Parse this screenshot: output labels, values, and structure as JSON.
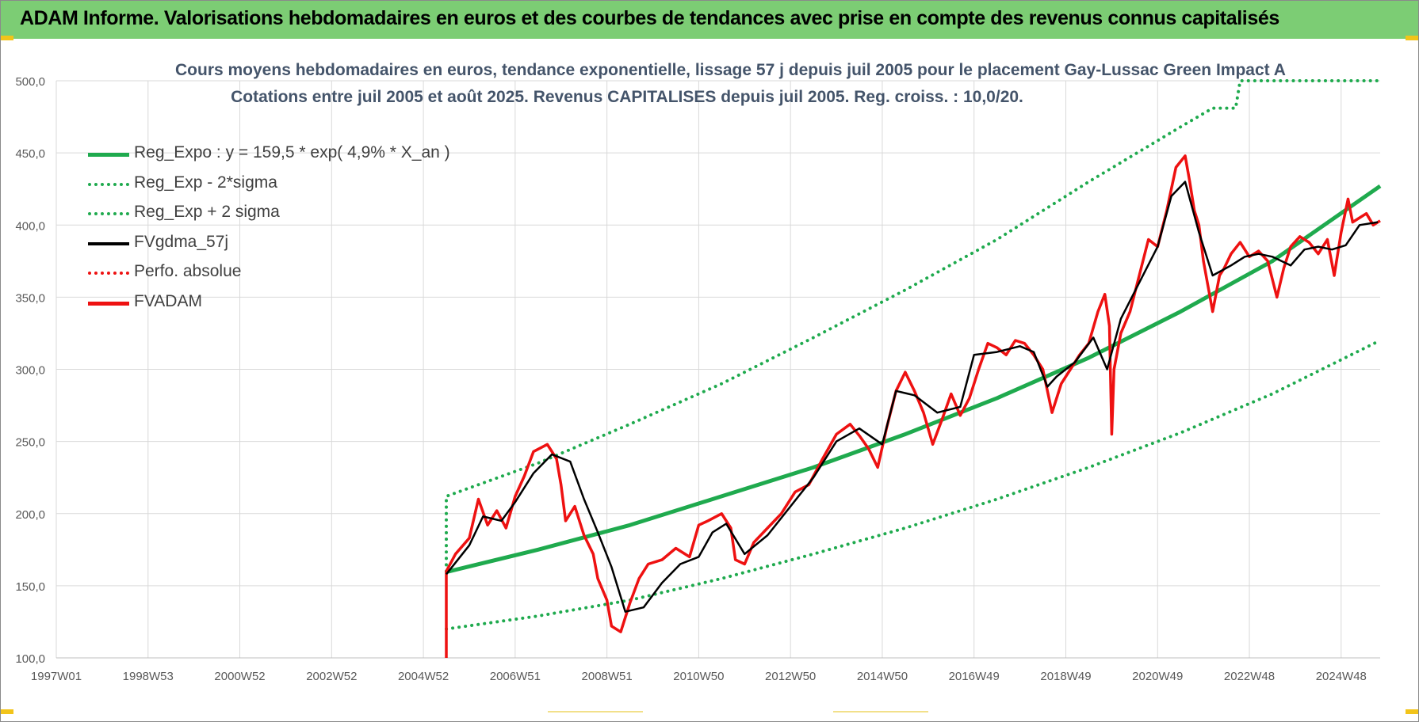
{
  "header": {
    "title": "ADAM Informe. Valorisations hebdomadaires en euros et des courbes de tendances avec prise en compte des revenus connus capitalisés"
  },
  "colors": {
    "banner": "#7ccd74",
    "regression": "#1faa4e",
    "band": "#1faa4e",
    "smoothed": "#000000",
    "price": "#ee1111",
    "grid": "#d9d9d9",
    "axis_text": "#595959",
    "title_text": "#44546a"
  },
  "chart_data": {
    "type": "line",
    "title": "Cours moyens hebdomadaires en euros, tendance exponentielle, lissage 57 j depuis juil 2005 pour le placement Gay-Lussac Green Impact A",
    "subtitle": "Cotations entre juil 2005 et août 2025. Revenus CAPITALISES depuis juil 2005. Reg. croiss. : 10,0/20.",
    "xlabel": "",
    "ylabel": "",
    "xlim": [
      1997.0,
      2025.85
    ],
    "ylim": [
      100,
      500
    ],
    "grid": true,
    "legend_position": "left",
    "x_tick_labels": [
      "1997W01",
      "1998W53",
      "2000W52",
      "2002W52",
      "2004W52",
      "2006W51",
      "2008W51",
      "2010W50",
      "2012W50",
      "2014W50",
      "2016W49",
      "2018W49",
      "2020W49",
      "2022W48",
      "2024W48"
    ],
    "x_tick_values": [
      1997.0,
      1999.0,
      2001.0,
      2003.0,
      2005.0,
      2007.0,
      2009.0,
      2011.0,
      2013.0,
      2015.0,
      2017.0,
      2019.0,
      2021.0,
      2023.0,
      2025.0
    ],
    "y_tick_labels": [
      "100,0",
      "150,0",
      "200,0",
      "250,0",
      "300,0",
      "350,0",
      "400,0",
      "450,0",
      "500,0"
    ],
    "y_tick_values": [
      100,
      150,
      200,
      250,
      300,
      350,
      400,
      450,
      500
    ],
    "series": [
      {
        "name": "Reg_Expo : y = 159,5 * exp( 4,9% *  X_an )",
        "style": "solid-thick",
        "color": "#1faa4e",
        "x": [
          2005.5,
          2007.5,
          2009.5,
          2011.5,
          2013.5,
          2015.5,
          2017.5,
          2019.5,
          2021.5,
          2023.5,
          2025.85
        ],
        "y": [
          159.5,
          175,
          192,
          212,
          232,
          255,
          280,
          308,
          340,
          375,
          427
        ]
      },
      {
        "name": "Reg_Exp - 2*sigma",
        "style": "dotted",
        "color": "#1faa4e",
        "x": [
          2005.5,
          2007.5,
          2009.5,
          2011.5,
          2013.5,
          2015.5,
          2017.5,
          2019.5,
          2021.5,
          2023.5,
          2025.85
        ],
        "y": [
          120,
          129,
          140,
          155,
          172,
          190,
          210,
          232,
          256,
          283,
          320
        ]
      },
      {
        "name": "Reg_Exp + 2 sigma",
        "style": "dotted",
        "color": "#1faa4e",
        "x": [
          2005.5,
          2005.5,
          2007.5,
          2009.5,
          2011.5,
          2013.5,
          2015.5,
          2017.5,
          2019.5,
          2021.5,
          2022.2,
          2022.7,
          2022.8,
          2025.85
        ],
        "y": [
          160,
          212,
          235,
          262,
          290,
          322,
          355,
          390,
          430,
          468,
          481,
          481,
          500,
          500
        ]
      },
      {
        "name": "FVgdma_57j",
        "style": "solid",
        "color": "#000000",
        "x": [
          2005.5,
          2006.0,
          2006.3,
          2006.7,
          2007.0,
          2007.4,
          2007.8,
          2008.2,
          2008.5,
          2008.8,
          2009.1,
          2009.4,
          2009.8,
          2010.2,
          2010.6,
          2011.0,
          2011.3,
          2011.6,
          2012.0,
          2012.5,
          2013.0,
          2013.5,
          2014.0,
          2014.5,
          2015.0,
          2015.3,
          2015.7,
          2016.2,
          2016.7,
          2017.0,
          2017.5,
          2018.0,
          2018.3,
          2018.6,
          2018.8,
          2019.2,
          2019.6,
          2019.9,
          2020.2,
          2020.6,
          2021.0,
          2021.3,
          2021.6,
          2021.9,
          2022.2,
          2022.6,
          2022.9,
          2023.2,
          2023.5,
          2023.9,
          2024.2,
          2024.5,
          2024.8,
          2025.1,
          2025.4,
          2025.8
        ],
        "y": [
          158,
          178,
          198,
          195,
          208,
          228,
          241,
          236,
          210,
          187,
          163,
          132,
          135,
          152,
          165,
          170,
          187,
          193,
          172,
          185,
          205,
          225,
          250,
          259,
          248,
          285,
          282,
          270,
          274,
          310,
          312,
          316,
          312,
          288,
          295,
          305,
          322,
          300,
          335,
          360,
          385,
          420,
          430,
          395,
          365,
          372,
          378,
          380,
          378,
          372,
          383,
          385,
          383,
          386,
          400,
          402
        ]
      },
      {
        "name": "Perfo. absolue",
        "style": "dotted",
        "color": "#ee1111",
        "x": [],
        "y": []
      },
      {
        "name": "FVADAM",
        "style": "solid-thick",
        "color": "#ee1111",
        "x": [
          2005.5,
          2005.5,
          2005.7,
          2006.0,
          2006.2,
          2006.4,
          2006.6,
          2006.8,
          2007.0,
          2007.2,
          2007.4,
          2007.7,
          2007.9,
          2008.0,
          2008.1,
          2008.3,
          2008.5,
          2008.7,
          2008.8,
          2009.0,
          2009.1,
          2009.3,
          2009.5,
          2009.7,
          2009.9,
          2010.2,
          2010.5,
          2010.8,
          2011.0,
          2011.2,
          2011.5,
          2011.7,
          2011.8,
          2012.0,
          2012.2,
          2012.5,
          2012.8,
          2013.1,
          2013.4,
          2013.7,
          2014.0,
          2014.3,
          2014.5,
          2014.7,
          2014.9,
          2015.1,
          2015.3,
          2015.5,
          2015.7,
          2015.9,
          2016.1,
          2016.3,
          2016.5,
          2016.7,
          2016.9,
          2017.1,
          2017.3,
          2017.5,
          2017.7,
          2017.9,
          2018.1,
          2018.3,
          2018.5,
          2018.7,
          2018.9,
          2019.1,
          2019.3,
          2019.5,
          2019.7,
          2019.85,
          2019.95,
          2020.0,
          2020.05,
          2020.2,
          2020.4,
          2020.6,
          2020.8,
          2021.0,
          2021.2,
          2021.4,
          2021.6,
          2021.7,
          2021.8,
          2021.9,
          2022.0,
          2022.2,
          2022.35,
          2022.45,
          2022.6,
          2022.8,
          2023.0,
          2023.2,
          2023.4,
          2023.6,
          2023.75,
          2023.9,
          2024.1,
          2024.3,
          2024.5,
          2024.7,
          2024.85,
          2025.0,
          2025.15,
          2025.25,
          2025.4,
          2025.55,
          2025.7,
          2025.85
        ],
        "y": [
          100,
          160,
          172,
          183,
          210,
          192,
          202,
          190,
          212,
          226,
          243,
          248,
          238,
          220,
          195,
          205,
          185,
          172,
          155,
          140,
          122,
          118,
          138,
          155,
          165,
          168,
          176,
          170,
          192,
          195,
          200,
          190,
          168,
          165,
          180,
          190,
          200,
          215,
          220,
          238,
          255,
          262,
          254,
          245,
          232,
          260,
          285,
          298,
          285,
          270,
          248,
          265,
          283,
          268,
          280,
          300,
          318,
          315,
          310,
          320,
          318,
          310,
          300,
          270,
          290,
          300,
          310,
          318,
          340,
          352,
          330,
          255,
          300,
          325,
          340,
          365,
          390,
          385,
          410,
          440,
          448,
          430,
          410,
          400,
          375,
          340,
          365,
          370,
          380,
          388,
          378,
          382,
          375,
          350,
          370,
          385,
          392,
          388,
          380,
          390,
          365,
          395,
          418,
          402,
          405,
          408,
          400,
          403
        ]
      }
    ]
  }
}
